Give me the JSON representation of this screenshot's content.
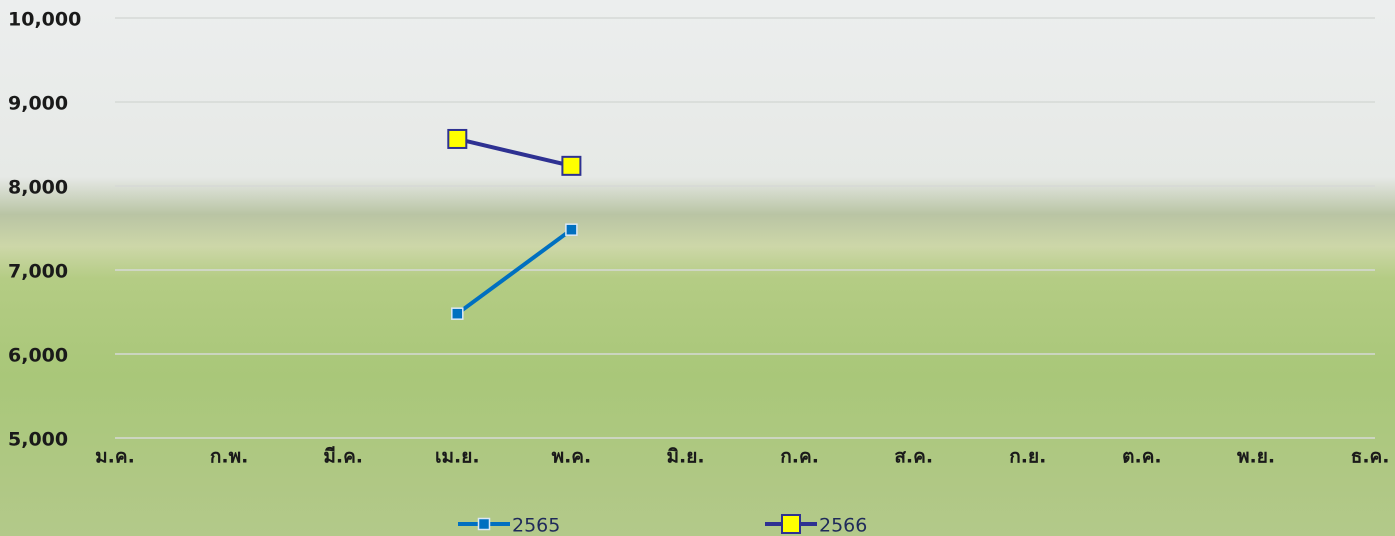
{
  "chart_data": {
    "type": "line",
    "categories": [
      "ม.ค.",
      "ก.พ.",
      "มี.ค.",
      "เม.ย.",
      "พ.ค.",
      "มิ.ย.",
      "ก.ค.",
      "ส.ค.",
      "ก.ย.",
      "ต.ค.",
      "พ.ย.",
      "ธ.ค."
    ],
    "series": [
      {
        "name": "2565",
        "color": "#0070c0",
        "values": [
          null,
          null,
          null,
          6480,
          7480,
          null,
          null,
          null,
          null,
          null,
          null,
          null
        ]
      },
      {
        "name": "2566",
        "color": "#2e3192",
        "marker_color": "#ffff00",
        "values": [
          null,
          null,
          null,
          8560,
          8240,
          null,
          null,
          null,
          null,
          null,
          null,
          null
        ]
      }
    ],
    "ylim": [
      5000,
      10000
    ],
    "yticks": [
      {
        "value": 5000,
        "label": "5,000"
      },
      {
        "value": 6000,
        "label": "6,000"
      },
      {
        "value": 7000,
        "label": "7,000"
      },
      {
        "value": 8000,
        "label": "8,000"
      },
      {
        "value": 9000,
        "label": "9,000"
      },
      {
        "value": 10000,
        "label": "10,000"
      }
    ],
    "grid": true
  }
}
